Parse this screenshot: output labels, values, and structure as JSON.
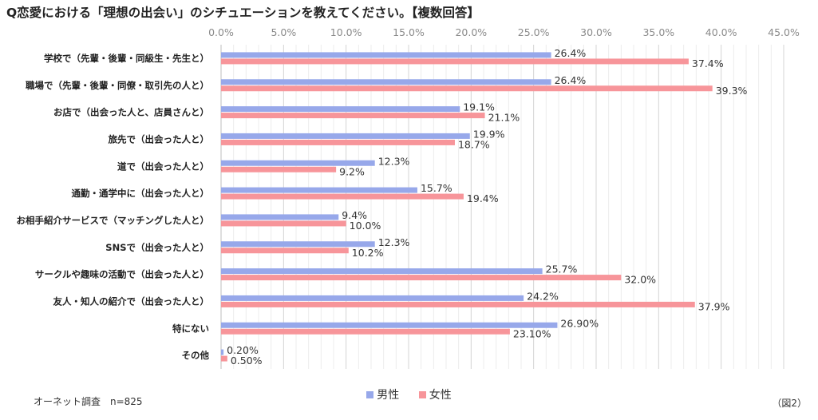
{
  "title": "Q恋愛における「理想の出会い」のシチュエーションを教えてください。【複数回答】",
  "source": "オーネット調査　n=825",
  "figure_label": "（図2）",
  "colors": {
    "male": "#97a8ea",
    "female": "#f7959a"
  },
  "chart_data": {
    "type": "bar",
    "orientation": "horizontal",
    "title": "Q恋愛における「理想の出会い」のシチュエーションを教えてください。【複数回答】",
    "xlim": [
      0,
      45
    ],
    "x_ticks": [
      "0.0%",
      "5.0%",
      "10.0%",
      "15.0%",
      "20.0%",
      "25.0%",
      "30.0%",
      "35.0%",
      "40.0%",
      "45.0%"
    ],
    "x_tick_values": [
      0,
      5,
      10,
      15,
      20,
      25,
      30,
      35,
      40,
      45
    ],
    "grid": true,
    "legend_position": "bottom",
    "categories": [
      "学校で（先輩・後輩・同級生・先生と）",
      "職場で（先輩・後輩・同僚・取引先の人と）",
      "お店で（出会った人と、店員さんと）",
      "旅先で（出会った人と）",
      "道で（出会った人と）",
      "通勤・通学中に（出会った人と）",
      "お相手紹介サービスで（マッチングした人と）",
      "SNSで（出会った人と）",
      "サークルや趣味の活動で（出会った人と）",
      "友人・知人の紹介で（出会った人と）",
      "特にない",
      "その他"
    ],
    "series": [
      {
        "name": "男性",
        "values": [
          26.4,
          26.4,
          19.1,
          19.9,
          12.3,
          15.7,
          9.4,
          12.3,
          25.7,
          24.2,
          26.9,
          0.2
        ],
        "labels": [
          "26.4%",
          "26.4%",
          "19.1%",
          "19.9%",
          "12.3%",
          "15.7%",
          "9.4%",
          "12.3%",
          "25.7%",
          "24.2%",
          "26.90%",
          "0.20%"
        ]
      },
      {
        "name": "女性",
        "values": [
          37.4,
          39.3,
          21.1,
          18.7,
          9.2,
          19.4,
          10.0,
          10.2,
          32.0,
          37.9,
          23.1,
          0.5
        ],
        "labels": [
          "37.4%",
          "39.3%",
          "21.1%",
          "18.7%",
          "9.2%",
          "19.4%",
          "10.0%",
          "10.2%",
          "32.0%",
          "37.9%",
          "23.10%",
          "0.50%"
        ]
      }
    ]
  }
}
